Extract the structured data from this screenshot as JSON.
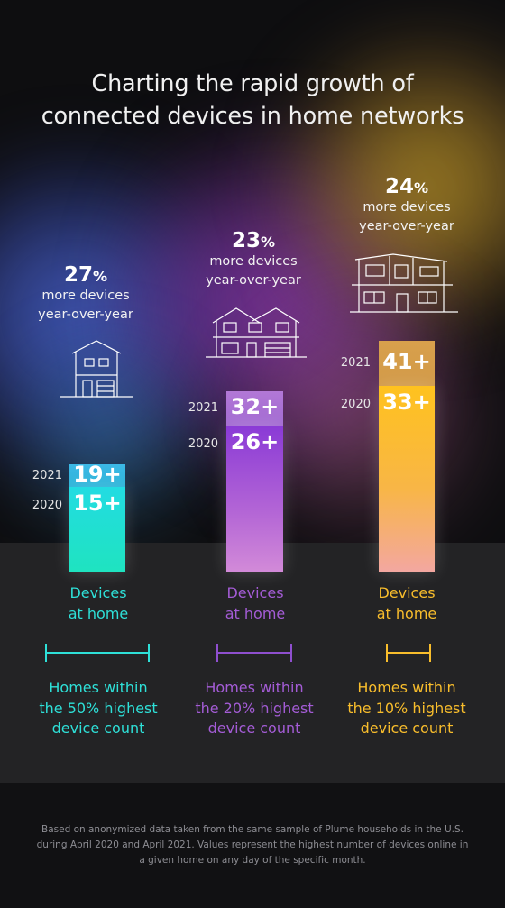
{
  "title": {
    "line1": "Charting the rapid growth of",
    "line2": "connected devices in home networks"
  },
  "chart_data": {
    "type": "bar",
    "categories": [
      "Homes within the 50% highest device count",
      "Homes within the 20% highest device count",
      "Homes within the 10% highest device count"
    ],
    "series": [
      {
        "name": "2020",
        "values": [
          15,
          26,
          33
        ]
      },
      {
        "name": "2021",
        "values": [
          19,
          32,
          41
        ]
      }
    ],
    "ylim": [
      0,
      41
    ],
    "colors": [
      "#2ee0d8",
      "#a45cd6",
      "#f8bd2c"
    ]
  },
  "groups": [
    {
      "pct_value": "27",
      "pct_sign": "%",
      "pct_line1": "more devices",
      "pct_line2": "year-over-year",
      "year_2021": "2021",
      "year_2020": "2020",
      "label_2021": "19+",
      "label_2020": "15+",
      "devices_line1": "Devices",
      "devices_line2": "at home",
      "homes_line1": "Homes within",
      "homes_line2": "the 50% highest",
      "homes_line3": "device count",
      "house_icon": "small-house-icon"
    },
    {
      "pct_value": "23",
      "pct_sign": "%",
      "pct_line1": "more devices",
      "pct_line2": "year-over-year",
      "year_2021": "2021",
      "year_2020": "2020",
      "label_2021": "32+",
      "label_2020": "26+",
      "devices_line1": "Devices",
      "devices_line2": "at home",
      "homes_line1": "Homes within",
      "homes_line2": "the 20% highest",
      "homes_line3": "device count",
      "house_icon": "two-story-house-icon"
    },
    {
      "pct_value": "24",
      "pct_sign": "%",
      "pct_line1": "more devices",
      "pct_line2": "year-over-year",
      "year_2021": "2021",
      "year_2020": "2020",
      "label_2021": "41+",
      "label_2020": "33+",
      "devices_line1": "Devices",
      "devices_line2": "at home",
      "homes_line1": "Homes within",
      "homes_line2": "the 10% highest",
      "homes_line3": "device count",
      "house_icon": "modern-house-icon"
    }
  ],
  "footnote": "Based on anonymized data taken from the same sample of Plume households in the U.S. during April 2020 and April 2021. Values represent the highest number of devices online in a given home on any day of the specific month."
}
